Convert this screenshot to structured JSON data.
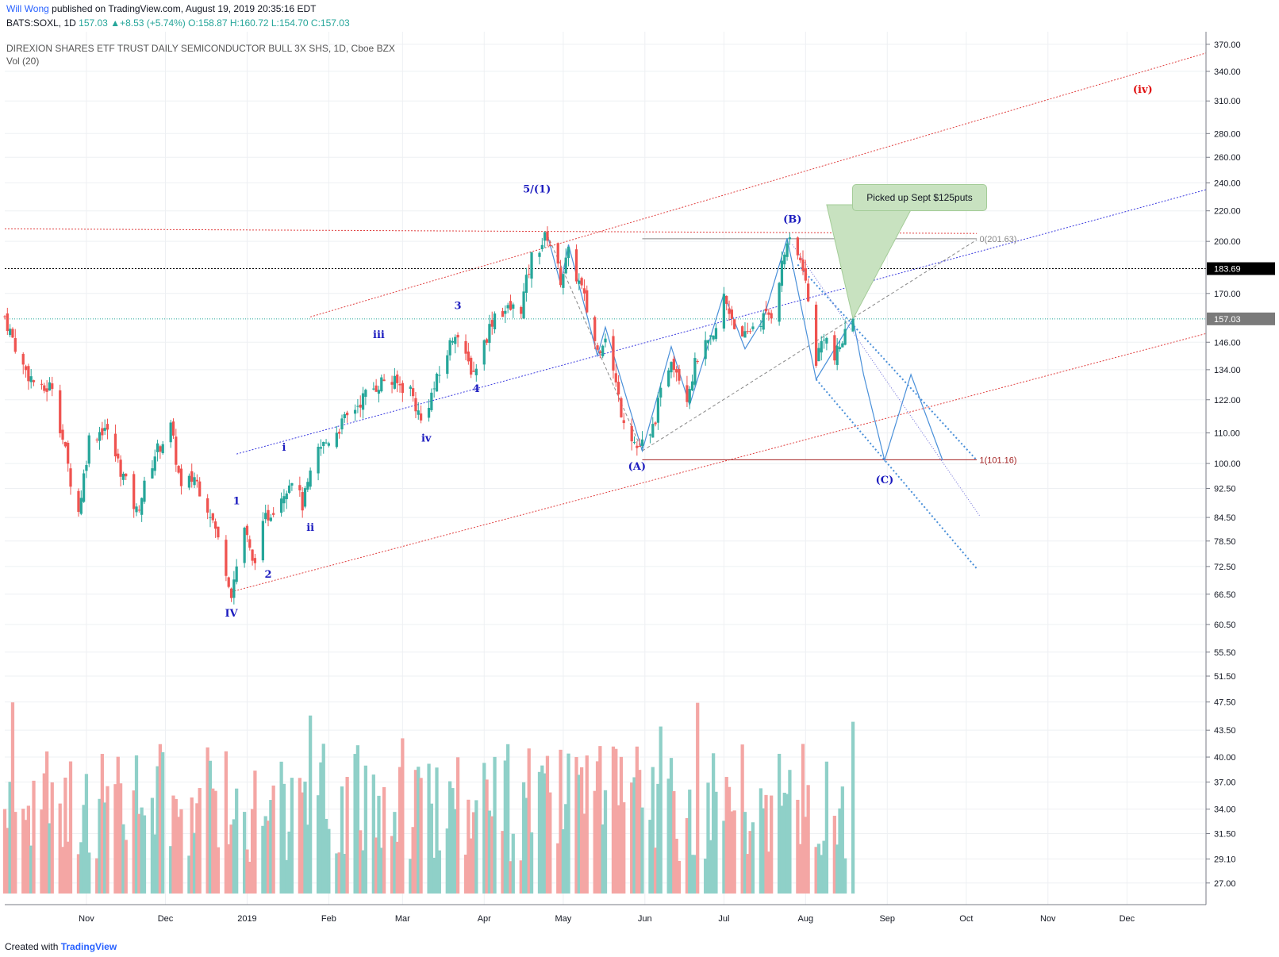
{
  "header": {
    "author": "Will Wong",
    "published": "published on TradingView.com, August 19, 2019 20:35:16 EDT",
    "symbol_line": "BATS:SOXL, 1D",
    "quote": "157.03 ▲+8.53 (+5.74%) O:158.87 H:160.72 L:154.70 C:157.03",
    "title": "DIREXION SHARES ETF TRUST DAILY SEMICONDUCTOR BULL 3X SHS, 1D, Cboe BZX",
    "volume_label": "Vol (20)"
  },
  "footer": {
    "created_with": "Created with",
    "brand": "TradingView"
  },
  "callout": "Picked up Sept $125puts",
  "colors": {
    "up": "#26a69a",
    "down": "#ef5350",
    "vol_up": "#8fd0c8",
    "vol_down": "#f4a6a4",
    "wave": "#1c1cbf",
    "channel_red": "#e04040",
    "blue_trend": "#3a3adf",
    "proj_blue": "#4a90d9",
    "price_tag": "#000000",
    "current_tag": "#7a7a7a"
  },
  "chart_data": {
    "type": "candlestick",
    "scale": "log",
    "price_axis_ticks": [
      370,
      340,
      310,
      280,
      260,
      240,
      220,
      200,
      170,
      146,
      134,
      122,
      110,
      100,
      92.5,
      84.5,
      78.5,
      72.5,
      66.5,
      60.5,
      55.5,
      51.5,
      47.5,
      43.5,
      40,
      37,
      34,
      31.5,
      29.1,
      27
    ],
    "price_axis_labels": [
      "370.00",
      "340.00",
      "310.00",
      "280.00",
      "260.00",
      "240.00",
      "220.00",
      "200.00",
      "170.00",
      "146.00",
      "134.00",
      "122.00",
      "110.00",
      "100.00",
      "92.50",
      "84.50",
      "78.50",
      "72.50",
      "66.50",
      "60.50",
      "55.50",
      "51.50",
      "47.50",
      "43.50",
      "40.00",
      "37.00",
      "34.00",
      "31.50",
      "29.10",
      "27.00"
    ],
    "time_axis": [
      {
        "label": "Nov",
        "date": "2018-11-01"
      },
      {
        "label": "Dec",
        "date": "2018-12-01"
      },
      {
        "label": "2019",
        "date": "2019-01-01"
      },
      {
        "label": "Feb",
        "date": "2019-02-01"
      },
      {
        "label": "Mar",
        "date": "2019-03-01"
      },
      {
        "label": "Apr",
        "date": "2019-04-01"
      },
      {
        "label": "May",
        "date": "2019-05-01"
      },
      {
        "label": "Jun",
        "date": "2019-06-01"
      },
      {
        "label": "Jul",
        "date": "2019-07-01"
      },
      {
        "label": "Aug",
        "date": "2019-08-01"
      },
      {
        "label": "Sep",
        "date": "2019-09-01"
      },
      {
        "label": "Oct",
        "date": "2019-10-01"
      },
      {
        "label": "Nov",
        "date": "2019-11-01"
      },
      {
        "label": "Dec",
        "date": "2019-12-01"
      }
    ],
    "date_range": [
      "2018-10-01",
      "2019-12-31"
    ],
    "last_price": {
      "value": 157.03,
      "label": "157.03"
    },
    "level_line": {
      "value": 183.69,
      "label": "183.69"
    },
    "fib_levels": [
      {
        "label": "0(201.63)",
        "value": 201.63
      },
      {
        "label": "1(101.16)",
        "value": 101.16
      }
    ],
    "price_path": [
      {
        "date": "2018-10-01",
        "price": 158
      },
      {
        "date": "2018-10-08",
        "price": 135
      },
      {
        "date": "2018-10-15",
        "price": 125
      },
      {
        "date": "2018-10-19",
        "price": 128
      },
      {
        "date": "2018-10-26",
        "price": 95
      },
      {
        "date": "2018-10-29",
        "price": 86
      },
      {
        "date": "2018-11-02",
        "price": 108
      },
      {
        "date": "2018-11-08",
        "price": 112
      },
      {
        "date": "2018-11-15",
        "price": 96
      },
      {
        "date": "2018-11-20",
        "price": 86
      },
      {
        "date": "2018-11-27",
        "price": 103
      },
      {
        "date": "2018-12-03",
        "price": 112
      },
      {
        "date": "2018-12-07",
        "price": 92
      },
      {
        "date": "2018-12-12",
        "price": 96
      },
      {
        "date": "2018-12-18",
        "price": 86
      },
      {
        "date": "2018-12-24",
        "price": 72
      },
      {
        "date": "2018-12-26",
        "price": 67
      },
      {
        "date": "2018-12-31",
        "price": 82
      },
      {
        "date": "2019-01-03",
        "price": 73
      },
      {
        "date": "2019-01-08",
        "price": 84
      },
      {
        "date": "2019-01-15",
        "price": 92
      },
      {
        "date": "2019-01-18",
        "price": 96
      },
      {
        "date": "2019-01-22",
        "price": 88
      },
      {
        "date": "2019-01-28",
        "price": 104
      },
      {
        "date": "2019-02-05",
        "price": 112
      },
      {
        "date": "2019-02-15",
        "price": 124
      },
      {
        "date": "2019-02-22",
        "price": 130
      },
      {
        "date": "2019-03-04",
        "price": 126
      },
      {
        "date": "2019-03-08",
        "price": 114
      },
      {
        "date": "2019-03-15",
        "price": 132
      },
      {
        "date": "2019-03-21",
        "price": 152
      },
      {
        "date": "2019-03-25",
        "price": 138
      },
      {
        "date": "2019-03-28",
        "price": 133
      },
      {
        "date": "2019-04-05",
        "price": 160
      },
      {
        "date": "2019-04-15",
        "price": 163
      },
      {
        "date": "2019-04-19",
        "price": 190
      },
      {
        "date": "2019-04-25",
        "price": 204
      },
      {
        "date": "2019-04-30",
        "price": 178
      },
      {
        "date": "2019-05-03",
        "price": 192
      },
      {
        "date": "2019-05-08",
        "price": 172
      },
      {
        "date": "2019-05-14",
        "price": 142
      },
      {
        "date": "2019-05-17",
        "price": 150
      },
      {
        "date": "2019-05-23",
        "price": 118
      },
      {
        "date": "2019-05-29",
        "price": 105
      },
      {
        "date": "2019-06-03",
        "price": 108
      },
      {
        "date": "2019-06-07",
        "price": 124
      },
      {
        "date": "2019-06-11",
        "price": 140
      },
      {
        "date": "2019-06-17",
        "price": 124
      },
      {
        "date": "2019-06-21",
        "price": 140
      },
      {
        "date": "2019-06-27",
        "price": 147
      },
      {
        "date": "2019-07-01",
        "price": 168
      },
      {
        "date": "2019-07-08",
        "price": 146
      },
      {
        "date": "2019-07-12",
        "price": 154
      },
      {
        "date": "2019-07-19",
        "price": 160
      },
      {
        "date": "2019-07-25",
        "price": 200
      },
      {
        "date": "2019-07-31",
        "price": 186
      },
      {
        "date": "2019-08-05",
        "price": 138
      },
      {
        "date": "2019-08-08",
        "price": 150
      },
      {
        "date": "2019-08-12",
        "price": 138
      },
      {
        "date": "2019-08-16",
        "price": 150
      },
      {
        "date": "2019-08-19",
        "price": 157.03
      }
    ],
    "wave_labels": [
      {
        "text": "IV",
        "date": "2018-12-26",
        "price": 62,
        "color": "#1c1cbf"
      },
      {
        "text": "1",
        "date": "2018-12-28",
        "price": 88,
        "color": "#1c1cbf"
      },
      {
        "text": "2",
        "date": "2019-01-09",
        "price": 70,
        "color": "#1c1cbf"
      },
      {
        "text": "i",
        "date": "2019-01-15",
        "price": 104,
        "color": "#1c1cbf"
      },
      {
        "text": "ii",
        "date": "2019-01-25",
        "price": 81,
        "color": "#1c1cbf"
      },
      {
        "text": "iii",
        "date": "2019-02-20",
        "price": 148,
        "color": "#1c1cbf"
      },
      {
        "text": "iv",
        "date": "2019-03-10",
        "price": 107,
        "color": "#1c1cbf"
      },
      {
        "text": "3",
        "date": "2019-03-22",
        "price": 162,
        "color": "#1c1cbf"
      },
      {
        "text": "4",
        "date": "2019-03-29",
        "price": 125,
        "color": "#1c1cbf"
      },
      {
        "text": "5/(1)",
        "date": "2019-04-21",
        "price": 233,
        "color": "#1c1cbf"
      },
      {
        "text": "(A)",
        "date": "2019-05-29",
        "price": 98,
        "color": "#1c1cbf"
      },
      {
        "text": "(B)",
        "date": "2019-07-27",
        "price": 212,
        "color": "#1c1cbf"
      },
      {
        "text": "(C)",
        "date": "2019-08-31",
        "price": 94,
        "color": "#1c1cbf"
      },
      {
        "text": "(iv)",
        "date": "2019-12-07",
        "price": 318,
        "color": "#e01010"
      }
    ],
    "volume_series": {
      "count": 225,
      "axis": "none"
    }
  }
}
